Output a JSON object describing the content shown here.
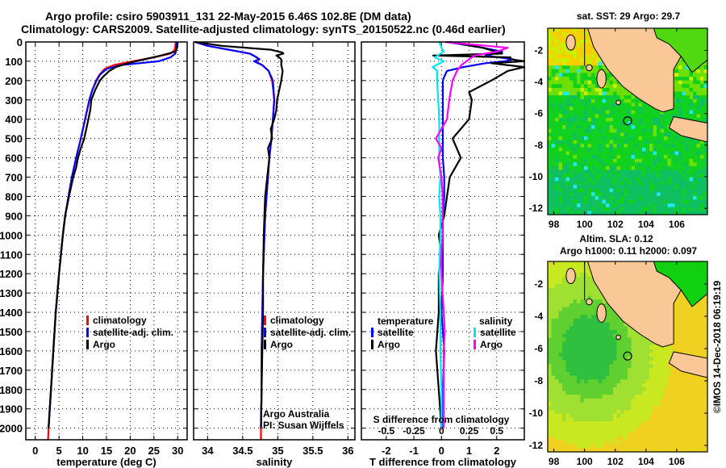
{
  "header": {
    "line1": "Argo profile: csiro 5903911_131 22-May-2015 6.46S 102.8E (DM data)",
    "line2": "Climatology: CARS2009. Satellite-adjusted climatology: synTS_20150522.nc (0.46d earlier)"
  },
  "colors": {
    "climatology": "#ff0000",
    "satellite": "#0000ff",
    "argo": "#000000",
    "sal_satellite": "#00e5ee",
    "sal_argo": "#ff00ff",
    "land": "#f9c896"
  },
  "chart_data": [
    {
      "type": "line",
      "name": "temperature",
      "xlabel": "temperature (deg C)",
      "ylabel": "",
      "xlim": [
        -2,
        32
      ],
      "ylim": [
        2060,
        0
      ],
      "xticks": [
        0,
        5,
        10,
        15,
        20,
        25,
        30
      ],
      "yticks": [
        0,
        100,
        200,
        300,
        400,
        500,
        600,
        700,
        800,
        900,
        1000,
        1100,
        1200,
        1300,
        1400,
        1500,
        1600,
        1700,
        1800,
        1900,
        2000
      ],
      "grid": true,
      "legend": {
        "placement": "center-right",
        "entries": [
          "climatology",
          "satellite-adj. clim.",
          "Argo"
        ]
      },
      "series": [
        {
          "name": "climatology",
          "color": "climatology",
          "depth": [
            0,
            40,
            60,
            80,
            100,
            120,
            140,
            170,
            200,
            250,
            300,
            400,
            500,
            600,
            700,
            800,
            900,
            1000,
            1200,
            1400,
            1600,
            1800,
            2000,
            2060
          ],
          "values": [
            29.6,
            29.4,
            28.5,
            25,
            20.5,
            16.5,
            14.6,
            13.5,
            12.8,
            12,
            11.4,
            10.5,
            9.6,
            8.6,
            7.7,
            7,
            6.3,
            5.8,
            5,
            4.3,
            3.8,
            3.3,
            2.8,
            2.7
          ]
        },
        {
          "name": "satellite-adj. clim.",
          "color": "satellite",
          "depth": [
            0,
            40,
            60,
            80,
            100,
            110,
            120,
            140,
            170,
            200,
            250,
            300,
            400,
            500,
            600,
            700,
            800,
            900,
            1000,
            1200,
            1400,
            1600,
            1800,
            2000
          ],
          "values": [
            29.8,
            29.7,
            29.5,
            28.5,
            26,
            22,
            18,
            15,
            13.6,
            12.9,
            12,
            11.4,
            10.5,
            9.6,
            8.6,
            7.7,
            7,
            6.3,
            5.8,
            5,
            4.3,
            3.8,
            3.3,
            2.8
          ]
        },
        {
          "name": "Argo",
          "color": "argo",
          "depth": [
            0,
            30,
            50,
            70,
            90,
            110,
            130,
            150,
            180,
            200,
            250,
            300,
            350,
            400,
            500,
            550,
            600,
            650,
            700,
            800,
            900,
            1000,
            1200,
            1400,
            1600,
            1800,
            2000
          ],
          "values": [
            30,
            29.9,
            29.5,
            26.5,
            23,
            19.5,
            17,
            15.6,
            14.3,
            13.6,
            12.6,
            11.8,
            11.6,
            11.2,
            10.3,
            9.6,
            9,
            8.6,
            8,
            7.1,
            6.3,
            5.8,
            5,
            4.3,
            3.8,
            3.3,
            2.8
          ]
        }
      ]
    },
    {
      "type": "line",
      "name": "salinity",
      "xlabel": "salinity",
      "xlim": [
        33.8,
        36.1
      ],
      "ylim": [
        2060,
        0
      ],
      "xticks": [
        34,
        34.5,
        35,
        35.5,
        36
      ],
      "grid": true,
      "legend": {
        "placement": "center-right",
        "entries": [
          "climatology",
          "satellite-adj. clim.",
          "Argo"
        ]
      },
      "annotation": [
        "Argo Australia",
        "PI: Susan Wijffels"
      ],
      "series": [
        {
          "name": "climatology",
          "color": "climatology",
          "depth": [
            0,
            20,
            40,
            60,
            80,
            90,
            100,
            120,
            150,
            200,
            300,
            400,
            500,
            600,
            700,
            800,
            900,
            1000,
            1200,
            1400,
            1600,
            1800,
            2000,
            2060
          ],
          "values": [
            33.82,
            34,
            34.3,
            34.6,
            34.7,
            34.72,
            34.68,
            34.78,
            34.87,
            34.92,
            34.95,
            34.93,
            34.91,
            34.88,
            34.86,
            34.84,
            34.82,
            34.81,
            34.79,
            34.78,
            34.77,
            34.77,
            34.76,
            34.76
          ]
        },
        {
          "name": "satellite-adj. clim.",
          "color": "satellite",
          "depth": [
            0,
            20,
            40,
            60,
            80,
            90,
            100,
            120,
            150,
            200,
            300,
            400,
            500,
            600,
            700,
            800,
            900,
            1000,
            1200,
            1400,
            1600,
            1800,
            2000
          ],
          "values": [
            33.82,
            34,
            34.3,
            34.6,
            34.7,
            34.74,
            34.66,
            34.78,
            34.87,
            34.93,
            34.95,
            34.93,
            34.91,
            34.88,
            34.86,
            34.84,
            34.82,
            34.81,
            34.79,
            34.78,
            34.77,
            34.77,
            34.76
          ]
        },
        {
          "name": "Argo",
          "color": "argo",
          "depth": [
            0,
            20,
            40,
            55,
            60,
            70,
            80,
            90,
            100,
            120,
            150,
            200,
            250,
            300,
            350,
            400,
            450,
            500,
            550,
            600,
            700,
            800,
            900,
            1000,
            1200,
            1400,
            1600,
            1800,
            2000
          ],
          "values": [
            33.82,
            34.2,
            34.9,
            35.07,
            35.08,
            34.98,
            35.02,
            35.05,
            35.05,
            35.05,
            35.07,
            35.05,
            35.02,
            34.99,
            34.98,
            34.95,
            34.9,
            34.92,
            34.86,
            34.88,
            34.85,
            34.82,
            34.81,
            34.8,
            34.79,
            34.79,
            34.78,
            34.77,
            34.76
          ]
        }
      ]
    },
    {
      "type": "line",
      "name": "difference",
      "xlabel": "T difference from climatology",
      "x2label": "S difference from climatology",
      "xlim": [
        -2.9,
        3.0
      ],
      "ylim": [
        2060,
        0
      ],
      "xticks": [
        -2,
        -1,
        0,
        1,
        2
      ],
      "x2ticks": [
        "-0.5",
        "-0.25",
        "0",
        "0.25",
        "0.5"
      ],
      "grid": true,
      "legend": {
        "placement": "center",
        "groups": [
          {
            "title": "temperature",
            "entries": [
              "satellite",
              "Argo"
            ]
          },
          {
            "title": "salinity",
            "entries": [
              "satellite",
              "Argo"
            ]
          }
        ]
      },
      "series": [
        {
          "name": "temperature satellite",
          "color": "satellite",
          "depth": [
            0,
            30,
            50,
            70,
            90,
            100,
            110,
            130,
            150,
            180,
            200,
            300,
            400,
            500,
            600,
            700,
            800,
            900,
            1000,
            1200,
            1400,
            1600,
            1800,
            2000
          ],
          "values": [
            0.2,
            1.5,
            2.2,
            1.6,
            2.6,
            2.3,
            1.6,
            0.8,
            0.2,
            0.1,
            0.05,
            0.05,
            0.05,
            0.05,
            0.05,
            0.1,
            0.1,
            0.05,
            0.05,
            0.05,
            0,
            0.1,
            0.05,
            0.05
          ]
        },
        {
          "name": "temperature Argo",
          "color": "argo",
          "depth": [
            0,
            30,
            60,
            70,
            80,
            90,
            100,
            110,
            130,
            150,
            200,
            260,
            300,
            400,
            450,
            500,
            600,
            700,
            800,
            900,
            1000,
            1100,
            1200,
            1400,
            1600,
            1800,
            2000
          ],
          "values": [
            0.3,
            1.5,
            2.2,
            -0.3,
            2.5,
            2.5,
            3.0,
            1.8,
            3.0,
            2.4,
            1.8,
            1,
            1.1,
            1,
            0.7,
            0.4,
            0.7,
            0.3,
            0.2,
            0.1,
            -0.1,
            0,
            -0.1,
            -0.1,
            -0.2,
            -0.1,
            0
          ]
        },
        {
          "name": "salinity satellite",
          "color": "sal_satellite",
          "depth": [
            0,
            30,
            50,
            80,
            100,
            130,
            150,
            200,
            300,
            400,
            500,
            600,
            700,
            800,
            900,
            1000,
            1200,
            1400,
            1600,
            1800,
            2000
          ],
          "values": [
            -0.02,
            0,
            0.02,
            -0.06,
            0.02,
            -0.08,
            -0.04,
            -0.04,
            -0.03,
            -0.02,
            -0.02,
            -0.02,
            -0.01,
            -0.02,
            -0.01,
            -0.01,
            -0.02,
            -0.01,
            -0.01,
            0,
            0
          ]
        },
        {
          "name": "salinity Argo",
          "color": "sal_argo",
          "depth": [
            0,
            30,
            50,
            70,
            90,
            120,
            150,
            200,
            300,
            400,
            500,
            550,
            600,
            700,
            800,
            900,
            1000,
            1100,
            1200,
            1400,
            1500,
            1600,
            1800,
            2000
          ],
          "values": [
            0.03,
            0.6,
            0.5,
            0.3,
            0.25,
            0.18,
            0.14,
            0.1,
            0.07,
            0.05,
            -0.05,
            0,
            -0.03,
            0,
            0.01,
            0.01,
            0.01,
            0,
            0,
            0.02,
            0.03,
            0.02,
            0.02,
            0.02
          ]
        }
      ]
    },
    {
      "type": "heatmap",
      "name": "sst-map",
      "title": "sat. SST: 29 Argo: 29.7",
      "xlim": [
        97.6,
        108
      ],
      "ylim": [
        -12.4,
        -0.6
      ],
      "xticks": [
        98,
        100,
        102,
        104,
        106
      ],
      "yticks": [
        -2,
        -4,
        -6,
        -8,
        -10,
        -12
      ],
      "argo_position": {
        "lon": 102.8,
        "lat": -6.46
      }
    },
    {
      "type": "heatmap",
      "name": "sla-map",
      "title": "Altim. SLA: 0.12",
      "subtitle": "Argo h1000: 0.11 h2000: 0.097",
      "xlim": [
        97.6,
        108
      ],
      "ylim": [
        -12.4,
        -0.6
      ],
      "xticks": [
        98,
        100,
        102,
        104,
        106
      ],
      "yticks": [
        -2,
        -4,
        -6,
        -8,
        -10,
        -12
      ],
      "argo_position": {
        "lon": 102.8,
        "lat": -6.46
      }
    }
  ],
  "credit": "©IMOS 14-Dec-2018 06:19:19"
}
